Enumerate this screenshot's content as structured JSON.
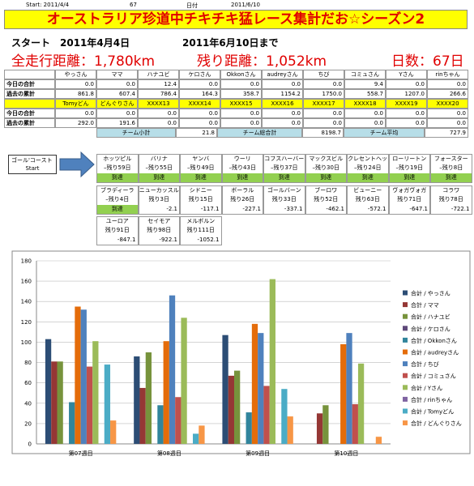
{
  "header": {
    "start_label": "Start: 2011/4/4",
    "days": "67",
    "date_label": "日付",
    "date": "2011/6/10",
    "title": "オーストラリア珍道中チキチキ猛レース集計だお☆シーズン2",
    "start_line": "スタート　2011年4月4日",
    "until_line": "2011年6月10日まで",
    "total_distance": "全走行距離：1,780km",
    "remaining_distance": "残り距離：1,052km",
    "day_count": "日数：67日"
  },
  "table": {
    "row_labels": [
      "今日の合計",
      "過去の累計"
    ],
    "blocks": [
      {
        "names": [
          "やっさん",
          "ママ",
          "ハナユビ",
          "ケロさん",
          "Okkonさん",
          "audreyさん",
          "ちび",
          "コミュさん",
          "Yさん",
          "rinちゃん"
        ],
        "today": [
          "0.0",
          "0.0",
          "12.4",
          "0.0",
          "0.0",
          "0.0",
          "0.0",
          "9.4",
          "0.0",
          "0.0"
        ],
        "past": [
          "861.8",
          "607.4",
          "786.4",
          "164.3",
          "358.7",
          "1154.2",
          "1750.0",
          "558.7",
          "1207.0",
          "266.6"
        ]
      },
      {
        "names": [
          "Tomyどん",
          "どんぐりさん",
          "XXXX13",
          "XXXX14",
          "XXXX15",
          "XXXX16",
          "XXXX17",
          "XXXX18",
          "XXXX19",
          "XXXX20"
        ],
        "today": [
          "0.0",
          "0.0",
          "0.0",
          "0.0",
          "0.0",
          "0.0",
          "0.0",
          "0.0",
          "0.0",
          "0.0"
        ],
        "past": [
          "292.0",
          "191.6",
          "0.0",
          "0.0",
          "0.0",
          "0.0",
          "0.0",
          "0.0",
          "0.0",
          "0.0"
        ]
      }
    ],
    "summary": [
      {
        "label": "チーム小計",
        "value": "21.8"
      },
      {
        "label": "チーム総合計",
        "value": "8198.7"
      },
      {
        "label": "チーム平均",
        "value": "727.9"
      }
    ]
  },
  "course": {
    "start": [
      "ゴール'コースト",
      "Start"
    ],
    "rows": [
      [
        {
          "name": "ホッツピル",
          "days": "–残り59日",
          "status": "到達"
        },
        {
          "name": "バリナ",
          "days": "–残り55日",
          "status": "到達"
        },
        {
          "name": "ヤンバ",
          "days": "–残り49日",
          "status": "到達"
        },
        {
          "name": "ウーリ",
          "days": "–残り43日",
          "status": "到達"
        },
        {
          "name": "コフスハーバー",
          "days": "–残り37日",
          "status": "到達"
        },
        {
          "name": "マックスビル",
          "days": "–残り30日",
          "status": "到達"
        },
        {
          "name": "クレセントヘッド",
          "days": "–残り24日",
          "status": "到達"
        },
        {
          "name": "ローリートン",
          "days": "–残り19日",
          "status": "到達"
        },
        {
          "name": "フォースター",
          "days": "–残り8日",
          "status": "到達"
        }
      ],
      [
        {
          "name": "ブラディーラ",
          "days": "–残り4日",
          "status": "到達"
        },
        {
          "name": "ニューカッスル",
          "days": "残り3日",
          "status": "-2.1"
        },
        {
          "name": "シドニー",
          "days": "残り15日",
          "status": "-117.1"
        },
        {
          "name": "ボーラル",
          "days": "残り26日",
          "status": "-227.1"
        },
        {
          "name": "ゴールバーン",
          "days": "残り33日",
          "status": "-337.1"
        },
        {
          "name": "ブーロワ",
          "days": "残り52日",
          "status": "-462.1"
        },
        {
          "name": "ビューニー",
          "days": "残り63日",
          "status": "-572.1"
        },
        {
          "name": "ヴォガヴォガ",
          "days": "残り71日",
          "status": "-647.1"
        },
        {
          "name": "コラワ",
          "days": "残り78日",
          "status": "-722.1"
        }
      ],
      [
        {
          "name": "ユーロア",
          "days": "残り91日",
          "status": "-847.1"
        },
        {
          "name": "セイモア",
          "days": "残り98日",
          "status": "-922.1"
        },
        {
          "name": "メルボルン",
          "days": "残り111日",
          "status": "-1052.1"
        }
      ]
    ]
  },
  "chart_data": {
    "type": "bar",
    "categories": [
      "第07週目",
      "第08週目",
      "第09週目",
      "第10週目"
    ],
    "ylim": [
      0,
      180
    ],
    "yticks": [
      0,
      20,
      40,
      60,
      80,
      100,
      120,
      140,
      160,
      180
    ],
    "grid": true,
    "series": [
      {
        "name": "合計 / やっさん",
        "color": "#2c4d75",
        "values": [
          103,
          86,
          107,
          0
        ]
      },
      {
        "name": "合計 / ママ",
        "color": "#953735",
        "values": [
          81,
          55,
          67,
          30
        ]
      },
      {
        "name": "合計 / ハナユビ",
        "color": "#77933c",
        "values": [
          81,
          90,
          72,
          38
        ]
      },
      {
        "name": "合計 / ケロさん",
        "color": "#5f497a",
        "values": [
          0,
          0,
          0,
          0
        ]
      },
      {
        "name": "合計 / Okkonさん",
        "color": "#31859c",
        "values": [
          41,
          38,
          31,
          0
        ]
      },
      {
        "name": "合計 / audreyさん",
        "color": "#e46c0a",
        "values": [
          135,
          101,
          118,
          98
        ]
      },
      {
        "name": "合計 / ちび",
        "color": "#4f81bd",
        "values": [
          132,
          146,
          109,
          109
        ]
      },
      {
        "name": "合計 / コミュさん",
        "color": "#c0504d",
        "values": [
          76,
          46,
          57,
          39
        ]
      },
      {
        "name": "合計 / Yさん",
        "color": "#9bbb59",
        "values": [
          101,
          124,
          162,
          79
        ]
      },
      {
        "name": "合計 / rinちゃん",
        "color": "#8064a2",
        "values": [
          0,
          0,
          0,
          0
        ]
      },
      {
        "name": "合計 / Tomyどん",
        "color": "#4bacc6",
        "values": [
          78,
          10,
          54,
          0
        ]
      },
      {
        "name": "合計 / どんぐりさん",
        "color": "#f79646",
        "values": [
          23,
          18,
          27,
          7
        ]
      }
    ]
  }
}
